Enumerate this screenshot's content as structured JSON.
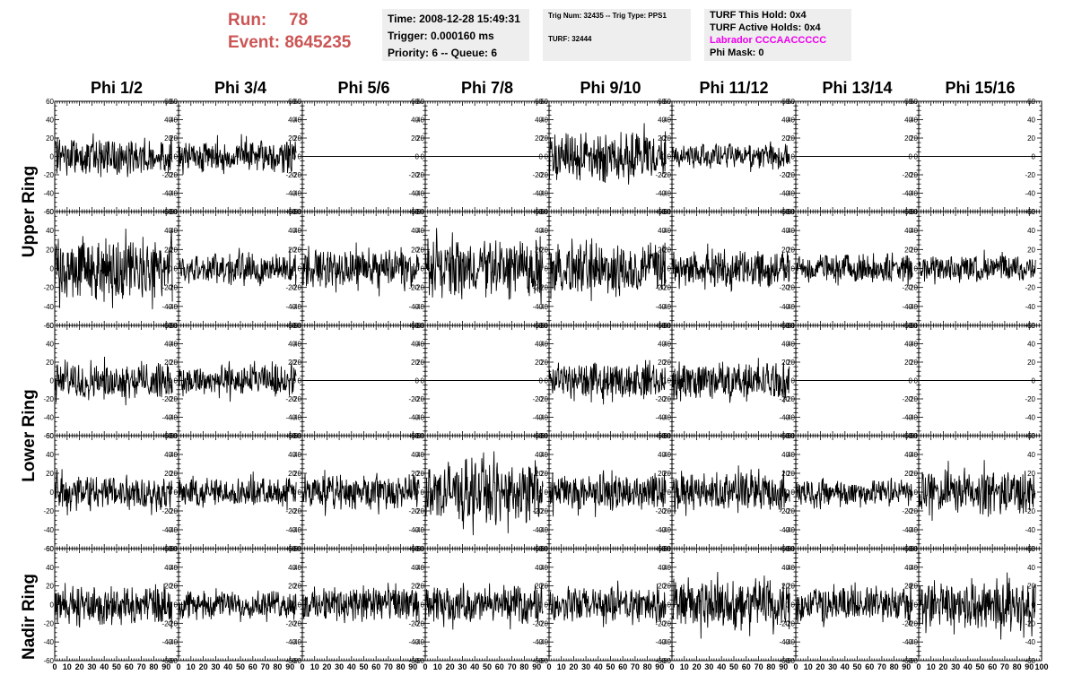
{
  "header": {
    "run_label": "Run:",
    "run_value": "78",
    "event_label": "Event:",
    "event_value": "8645235"
  },
  "info_time": {
    "time": "Time: 2008-12-28 15:49:31",
    "trigger": "Trigger: 0.000160 ms",
    "priority": "Priority: 6 -- Queue: 6"
  },
  "info_trig": {
    "trig": "Trig Num: 32435 -- Trig Type: PPS1",
    "turf": "TURF: 32444"
  },
  "info_turf": {
    "this_hold": "TURF This Hold: 0x4",
    "active_holds": "TURF Active Holds: 0x4",
    "labrador": "Labrador CCCAACCCCC",
    "phi_mask": "Phi Mask: 0"
  },
  "chart_data": {
    "type": "line",
    "columns": [
      "Phi 1/2",
      "Phi 3/4",
      "Phi 5/6",
      "Phi 7/8",
      "Phi 9/10",
      "Phi 11/12",
      "Phi 13/14",
      "Phi 15/16"
    ],
    "ring_labels": [
      "Upper Ring",
      "Lower Ring",
      "Nadir Ring"
    ],
    "ylim": [
      -60,
      60
    ],
    "y_ticks": [
      -60,
      -40,
      -20,
      0,
      20,
      40,
      60
    ],
    "xlim": [
      0,
      100
    ],
    "x_ticks": [
      0,
      10,
      20,
      30,
      40,
      50,
      60,
      70,
      80,
      90,
      100
    ],
    "x_tick_labels": [
      "0",
      "10",
      "20",
      "30",
      "40",
      "50",
      "60",
      "70",
      "80",
      "90",
      "100"
    ],
    "waveform_samples_x": [
      0,
      95
    ],
    "panels": [
      [
        {
          "amplitude": 28,
          "active": true
        },
        {
          "amplitude": 25,
          "active": true
        },
        {
          "amplitude": 0,
          "active": false
        },
        {
          "amplitude": 0,
          "active": false
        },
        {
          "amplitude": 38,
          "active": true
        },
        {
          "amplitude": 20,
          "active": true
        },
        {
          "amplitude": 0,
          "active": false
        },
        {
          "amplitude": 0,
          "active": false
        }
      ],
      [
        {
          "amplitude": 48,
          "active": true
        },
        {
          "amplitude": 25,
          "active": true
        },
        {
          "amplitude": 30,
          "active": true
        },
        {
          "amplitude": 45,
          "active": true
        },
        {
          "amplitude": 40,
          "active": true
        },
        {
          "amplitude": 28,
          "active": true
        },
        {
          "amplitude": 22,
          "active": true
        },
        {
          "amplitude": 22,
          "active": true
        }
      ],
      [
        {
          "amplitude": 28,
          "active": true
        },
        {
          "amplitude": 25,
          "active": true
        },
        {
          "amplitude": 0,
          "active": false
        },
        {
          "amplitude": 0,
          "active": false
        },
        {
          "amplitude": 28,
          "active": true
        },
        {
          "amplitude": 30,
          "active": true
        },
        {
          "amplitude": 0,
          "active": false
        },
        {
          "amplitude": 0,
          "active": false
        }
      ],
      [
        {
          "amplitude": 28,
          "active": true
        },
        {
          "amplitude": 22,
          "active": true
        },
        {
          "amplitude": 28,
          "active": true
        },
        {
          "amplitude": 48,
          "active": true
        },
        {
          "amplitude": 28,
          "active": true
        },
        {
          "amplitude": 30,
          "active": true
        },
        {
          "amplitude": 20,
          "active": true
        },
        {
          "amplitude": 35,
          "active": true
        }
      ],
      [
        {
          "amplitude": 30,
          "active": true
        },
        {
          "amplitude": 22,
          "active": true
        },
        {
          "amplitude": 28,
          "active": true
        },
        {
          "amplitude": 28,
          "active": true
        },
        {
          "amplitude": 28,
          "active": true
        },
        {
          "amplitude": 42,
          "active": true
        },
        {
          "amplitude": 28,
          "active": true
        },
        {
          "amplitude": 40,
          "active": true
        }
      ]
    ]
  }
}
